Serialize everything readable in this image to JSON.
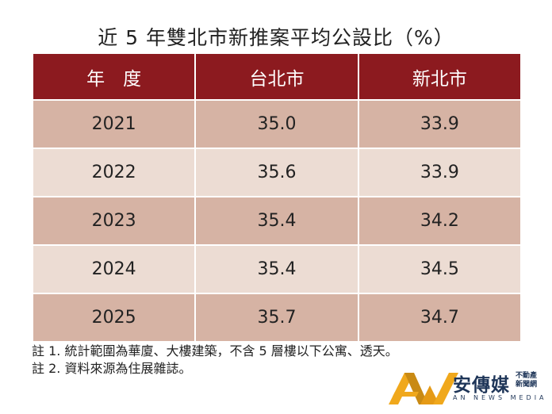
{
  "chart_data": {
    "type": "table",
    "title": "近 5 年雙北市新推案平均公設比（%）",
    "columns": [
      "年　度",
      "台北市",
      "新北市"
    ],
    "rows": [
      [
        "2021",
        "35.0",
        "33.9"
      ],
      [
        "2022",
        "35.6",
        "33.9"
      ],
      [
        "2023",
        "35.4",
        "34.2"
      ],
      [
        "2024",
        "35.4",
        "34.5"
      ],
      [
        "2025",
        "35.7",
        "34.7"
      ]
    ]
  },
  "notes": [
    "註 1. 統計範圍為華廈、大樓建築，不含 5 層樓以下公寓、透天。",
    "註 2. 資料來源為住展雜誌。"
  ],
  "logo": {
    "name": "安傳媒",
    "sub1": "不動產",
    "sub2": "新聞網",
    "en": "AN NEWS MEDIA"
  },
  "colors": {
    "header": "#8c1a1f",
    "row_dark": "#d6b3a4",
    "row_light": "#ecdcd3",
    "logo_gold": "#f0a81c",
    "logo_navy": "#1e3558"
  }
}
